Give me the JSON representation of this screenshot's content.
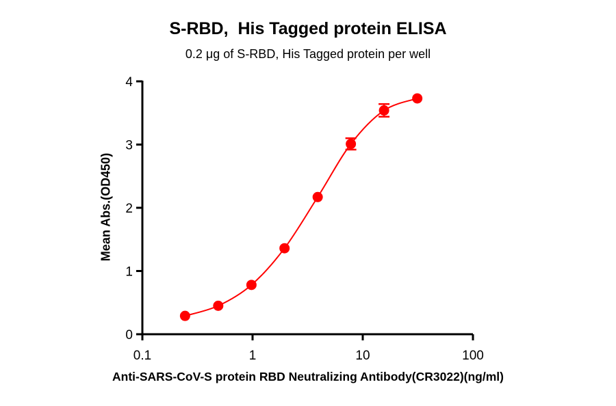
{
  "chart_data": {
    "type": "scatter",
    "title": "S-RBD,  His Tagged protein ELISA",
    "subtitle": "0.2 μg of S-RBD, His Tagged protein per well",
    "xlabel": "Anti-SARS-CoV-S protein RBD Neutralizing Antibody(CR3022)(ng/ml)",
    "ylabel": "Mean Abs.(OD450)",
    "xscale": "log",
    "xlim": [
      0.1,
      100
    ],
    "ylim": [
      0,
      4
    ],
    "x_ticks": [
      "0.1",
      "1",
      "10",
      "100"
    ],
    "y_ticks": [
      "0",
      "1",
      "2",
      "3",
      "4"
    ],
    "grid": false,
    "legend": null,
    "fit": "sigmoidal (4PL) curve",
    "series": [
      {
        "name": "S-RBD, His Tagged protein",
        "color": "#ff0000",
        "x": [
          0.244,
          0.488,
          0.977,
          1.95,
          3.9,
          7.8,
          15.6,
          31.25
        ],
        "y": [
          0.29,
          0.45,
          0.78,
          1.36,
          2.17,
          3.01,
          3.54,
          3.73
        ],
        "error": [
          0.01,
          0.01,
          0.01,
          0.02,
          0.02,
          0.09,
          0.1,
          0.02
        ]
      }
    ]
  },
  "colors": {
    "series": "#ff0000",
    "axis": "#000000"
  }
}
